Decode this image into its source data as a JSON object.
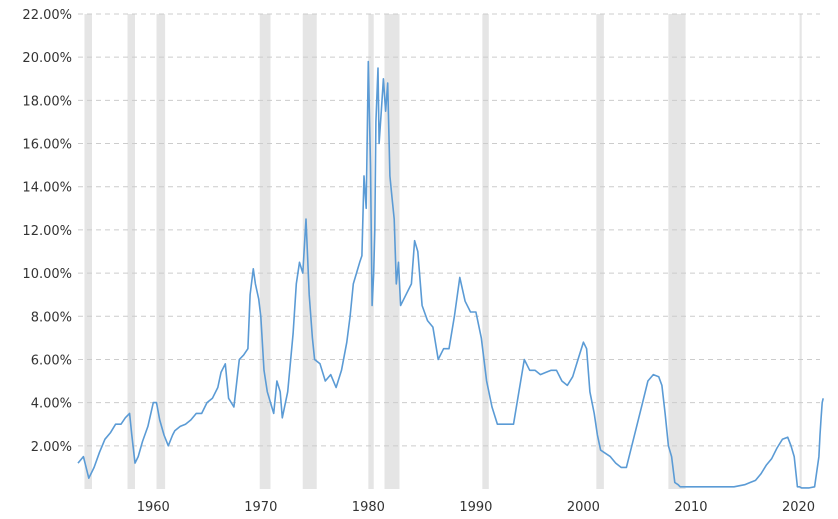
{
  "chart_data": {
    "type": "line",
    "title": "",
    "xlabel": "",
    "ylabel": "",
    "xlim": [
      1953,
      2022
    ],
    "ylim": [
      0,
      22
    ],
    "y_ticks": [
      2,
      4,
      6,
      8,
      10,
      12,
      14,
      16,
      18,
      20,
      22
    ],
    "y_tick_labels": [
      "2.00%",
      "4.00%",
      "6.00%",
      "8.00%",
      "10.00%",
      "12.00%",
      "14.00%",
      "16.00%",
      "18.00%",
      "20.00%",
      "22.00%"
    ],
    "x_ticks": [
      1960,
      1970,
      1980,
      1990,
      2000,
      2010,
      2020
    ],
    "x_tick_labels": [
      "1960",
      "1970",
      "1980",
      "1990",
      "2000",
      "2010",
      "2020"
    ],
    "grid": "horizontal dashed",
    "line_color": "#5b9bd5",
    "recession_color": "#e5e5e5",
    "recessions": [
      [
        1953.6,
        1954.3
      ],
      [
        1957.6,
        1958.3
      ],
      [
        1960.3,
        1961.1
      ],
      [
        1969.9,
        1970.9
      ],
      [
        1973.9,
        1975.2
      ],
      [
        1980.0,
        1980.5
      ],
      [
        1981.5,
        1982.9
      ],
      [
        1990.6,
        1991.2
      ],
      [
        2001.2,
        2001.9
      ],
      [
        2007.9,
        2009.5
      ],
      [
        2020.1,
        2020.3
      ]
    ],
    "series": [
      {
        "x": [
          1953.0,
          1953.5,
          1954.0,
          1954.5,
          1955.0,
          1955.5,
          1956.0,
          1956.5,
          1957.0,
          1957.4,
          1957.8,
          1958.0,
          1958.3,
          1958.6,
          1959.0,
          1959.5,
          1960.0,
          1960.3,
          1960.6,
          1961.0,
          1961.4,
          1961.8,
          1962.0,
          1962.5,
          1963.0,
          1963.5,
          1964.0,
          1964.5,
          1965.0,
          1965.5,
          1966.0,
          1966.3,
          1966.7,
          1967.0,
          1967.5,
          1968.0,
          1968.4,
          1968.8,
          1969.0,
          1969.3,
          1969.5,
          1969.8,
          1970.0,
          1970.3,
          1970.6,
          1970.9,
          1971.2,
          1971.5,
          1971.8,
          1972.0,
          1972.5,
          1973.0,
          1973.3,
          1973.6,
          1973.9,
          1974.2,
          1974.5,
          1974.8,
          1975.0,
          1975.5,
          1976.0,
          1976.5,
          1977.0,
          1977.5,
          1978.0,
          1978.3,
          1978.6,
          1978.9,
          1979.2,
          1979.4,
          1979.6,
          1979.8,
          1980.0,
          1980.2,
          1980.35,
          1980.5,
          1980.6,
          1980.7,
          1980.9,
          1981.0,
          1981.2,
          1981.4,
          1981.6,
          1981.8,
          1982.0,
          1982.2,
          1982.4,
          1982.6,
          1982.8,
          1983.0,
          1983.5,
          1984.0,
          1984.3,
          1984.6,
          1985.0,
          1985.5,
          1986.0,
          1986.5,
          1987.0,
          1987.5,
          1988.0,
          1988.5,
          1989.0,
          1989.5,
          1990.0,
          1990.5,
          1991.0,
          1991.5,
          1992.0,
          1992.5,
          1993.0,
          1993.5,
          1994.0,
          1994.5,
          1995.0,
          1995.5,
          1996.0,
          1996.5,
          1997.0,
          1997.5,
          1998.0,
          1998.5,
          1999.0,
          1999.5,
          2000.0,
          2000.3,
          2000.6,
          2001.0,
          2001.3,
          2001.6,
          2001.9,
          2002.5,
          2003.0,
          2003.5,
          2004.0,
          2004.5,
          2005.0,
          2005.5,
          2006.0,
          2006.5,
          2007.0,
          2007.3,
          2007.6,
          2007.9,
          2008.2,
          2008.5,
          2008.8,
          2009.0,
          2010.0,
          2011.0,
          2012.0,
          2013.0,
          2014.0,
          2015.0,
          2015.5,
          2016.0,
          2016.5,
          2017.0,
          2017.5,
          2018.0,
          2018.5,
          2019.0,
          2019.3,
          2019.6,
          2019.9,
          2020.1,
          2020.3,
          2021.0,
          2021.5,
          2021.9,
          2022.0,
          2022.1,
          2022.2,
          2022.3
        ],
        "y": [
          1.2,
          1.5,
          0.5,
          1.0,
          1.7,
          2.3,
          2.6,
          3.0,
          3.0,
          3.3,
          3.5,
          2.5,
          1.2,
          1.5,
          2.2,
          2.9,
          4.0,
          4.0,
          3.2,
          2.5,
          2.0,
          2.5,
          2.7,
          2.9,
          3.0,
          3.2,
          3.5,
          3.5,
          4.0,
          4.2,
          4.7,
          5.4,
          5.8,
          4.2,
          3.8,
          6.0,
          6.2,
          6.5,
          9.0,
          10.2,
          9.5,
          8.8,
          8.0,
          5.5,
          4.5,
          4.0,
          3.5,
          5.0,
          4.5,
          3.3,
          4.5,
          7.2,
          9.5,
          10.5,
          10.0,
          12.5,
          9.0,
          7.0,
          6.0,
          5.8,
          5.0,
          5.3,
          4.7,
          5.5,
          6.8,
          8.0,
          9.5,
          10.0,
          10.5,
          10.8,
          14.5,
          13.0,
          19.8,
          15.0,
          8.5,
          10.0,
          12.0,
          17.0,
          19.5,
          16.0,
          17.5,
          19.0,
          17.5,
          18.8,
          14.5,
          13.5,
          12.5,
          9.5,
          10.5,
          8.5,
          9.0,
          9.5,
          11.5,
          11.0,
          8.5,
          7.8,
          7.5,
          6.0,
          6.5,
          6.5,
          8.0,
          9.8,
          8.7,
          8.2,
          8.2,
          7.0,
          5.0,
          3.8,
          3.0,
          3.0,
          3.0,
          3.0,
          4.5,
          6.0,
          5.5,
          5.5,
          5.3,
          5.4,
          5.5,
          5.5,
          5.0,
          4.8,
          5.2,
          6.0,
          6.8,
          6.5,
          4.5,
          3.5,
          2.5,
          1.8,
          1.7,
          1.5,
          1.2,
          1.0,
          1.0,
          2.0,
          3.0,
          4.0,
          5.0,
          5.3,
          5.2,
          4.8,
          3.5,
          2.0,
          1.5,
          0.3,
          0.2,
          0.1,
          0.1,
          0.1,
          0.1,
          0.1,
          0.1,
          0.2,
          0.3,
          0.4,
          0.7,
          1.1,
          1.4,
          1.9,
          2.3,
          2.4,
          2.0,
          1.5,
          0.1,
          0.1,
          0.05,
          0.05,
          0.1,
          1.5,
          2.5,
          3.3,
          4.0,
          4.2
        ]
      }
    ]
  }
}
